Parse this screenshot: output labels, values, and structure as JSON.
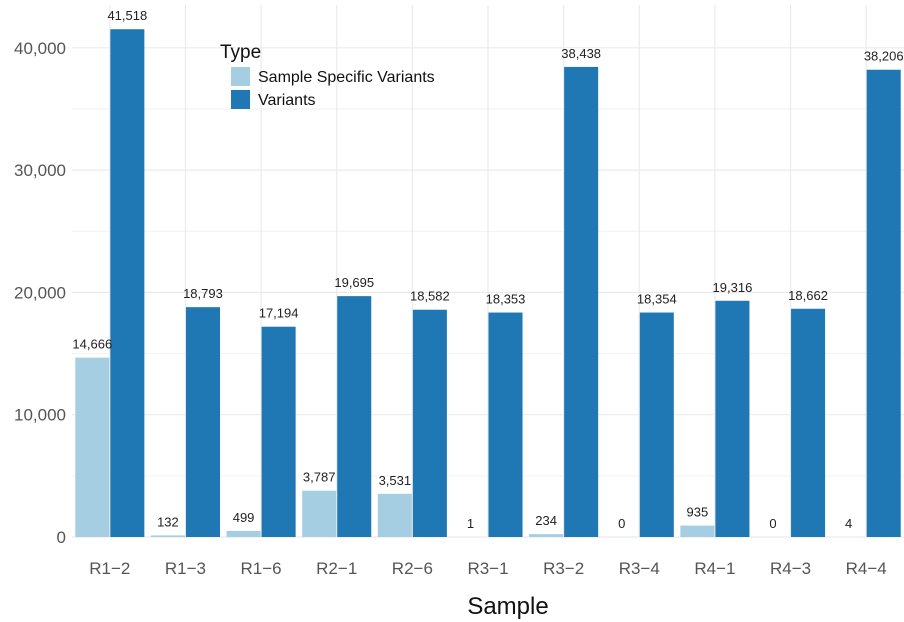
{
  "chart_data": {
    "type": "bar",
    "xlabel": "Sample",
    "ylabel": "",
    "ylim": [
      0,
      43500
    ],
    "yticks": [
      0,
      10000,
      20000,
      30000,
      40000
    ],
    "ytick_labels": [
      "0",
      "10,000",
      "20,000",
      "30,000",
      "40,000"
    ],
    "grid": true,
    "legend": {
      "title": "Type",
      "placement": "top-left-inside"
    },
    "categories": [
      "R1−2",
      "R1−3",
      "R1−6",
      "R2−1",
      "R2−6",
      "R3−1",
      "R3−2",
      "R3−4",
      "R4−1",
      "R4−3",
      "R4−4"
    ],
    "series": [
      {
        "name": "Sample Specific Variants",
        "color": "#a6cee3",
        "values": [
          14666,
          132,
          499,
          3787,
          3531,
          1,
          234,
          0,
          935,
          0,
          4
        ],
        "labels": [
          "14,666",
          "132",
          "499",
          "3,787",
          "3,531",
          "1",
          "234",
          "0",
          "935",
          "0",
          "4"
        ]
      },
      {
        "name": "Variants",
        "color": "#1f78b4",
        "values": [
          41518,
          18793,
          17194,
          19695,
          18582,
          18353,
          38438,
          18354,
          19316,
          18662,
          38206
        ],
        "labels": [
          "41,518",
          "18,793",
          "17,194",
          "19,695",
          "18,582",
          "18,353",
          "38,438",
          "18,354",
          "19,316",
          "18,662",
          "38,206"
        ]
      }
    ]
  }
}
